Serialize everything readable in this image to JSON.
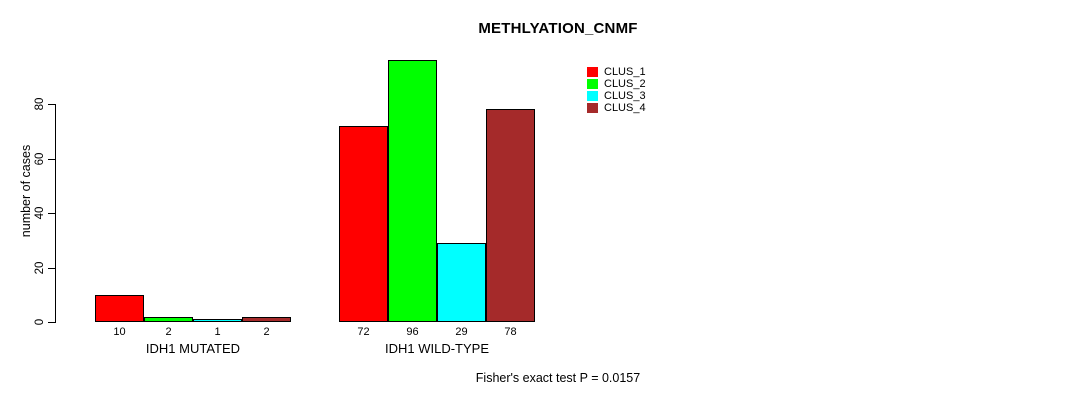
{
  "chart_data": {
    "type": "bar",
    "title": "METHLYATION_CNMF",
    "ylabel": "number of cases",
    "xlabel": "",
    "ylim": [
      0,
      96
    ],
    "yticks": [
      0,
      20,
      40,
      60,
      80
    ],
    "grid": false,
    "legend_position": "top-right-outside",
    "categories": [
      "IDH1 MUTATED",
      "IDH1 WILD-TYPE"
    ],
    "series": [
      {
        "name": "CLUS_1",
        "color": "#ff0000",
        "values": [
          10,
          72
        ]
      },
      {
        "name": "CLUS_2",
        "color": "#00ff00",
        "values": [
          2,
          96
        ]
      },
      {
        "name": "CLUS_3",
        "color": "#00ffff",
        "values": [
          1,
          29
        ]
      },
      {
        "name": "CLUS_4",
        "color": "#a52a2a",
        "values": [
          2,
          78
        ]
      }
    ],
    "bar_value_labels": {
      "IDH1 MUTATED": [
        10,
        2,
        1,
        2
      ],
      "IDH1 WILD-TYPE": [
        72,
        96,
        29,
        78
      ]
    },
    "caption": "Fisher's exact test P = 0.0157"
  }
}
